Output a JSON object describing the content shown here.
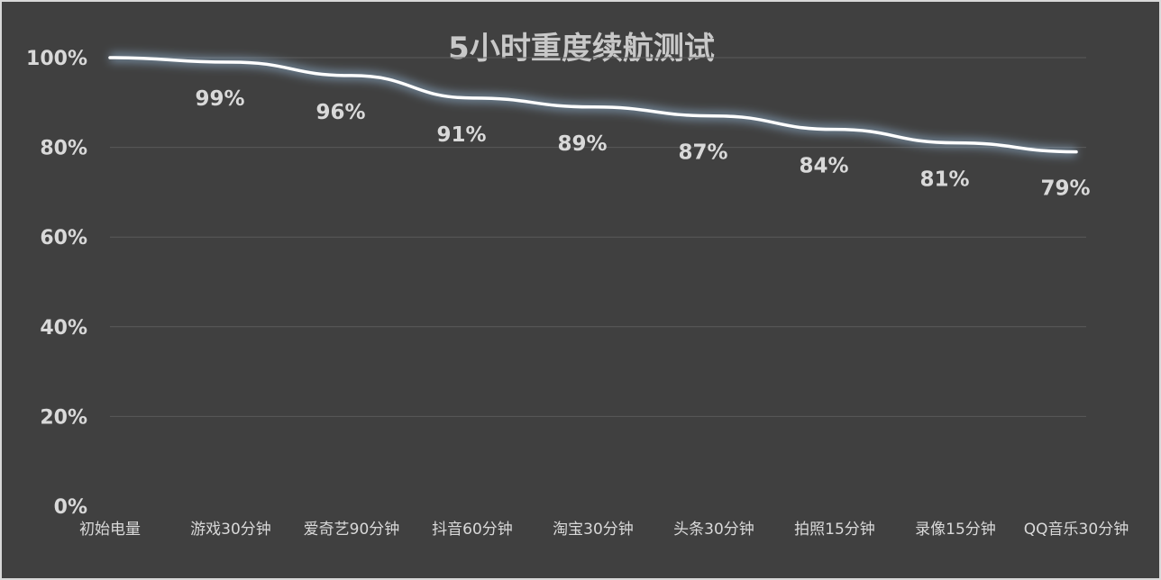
{
  "chart_data": {
    "type": "line",
    "title": "5小时重度续航测试",
    "categories": [
      "初始电量",
      "游戏30分钟",
      "爱奇艺90分钟",
      "抖音60分钟",
      "淘宝30分钟",
      "头条30分钟",
      "拍照15分钟",
      "录像15分钟",
      "QQ音乐30分钟"
    ],
    "series": [
      {
        "values": [
          100,
          99,
          96,
          91,
          89,
          87,
          84,
          81,
          79
        ]
      }
    ],
    "data_labels": [
      "",
      "99%",
      "96%",
      "91%",
      "89%",
      "87%",
      "84%",
      "81%",
      "79%"
    ],
    "y_ticks": [
      "0%",
      "20%",
      "40%",
      "60%",
      "80%",
      "100%"
    ],
    "ylim": [
      0,
      100
    ],
    "grid": true,
    "legend": "none",
    "colors": {
      "background": "#404040",
      "line": "#ffffff",
      "glow": "#9dc3e6",
      "text": "#d9d9d9",
      "grid": "#5a5a5a"
    }
  }
}
